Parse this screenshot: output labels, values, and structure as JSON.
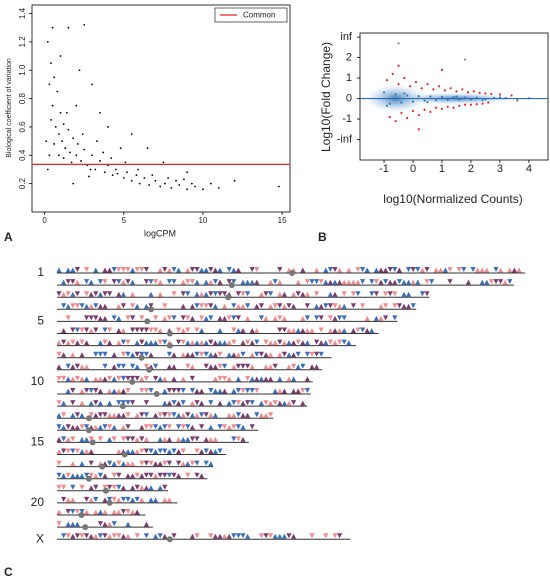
{
  "chart_data": [
    {
      "type": "scatter",
      "panel": "A",
      "xlabel": "logCPM",
      "ylabel": "Biological coefficient of variation",
      "xlim": [
        -0.8,
        15.5
      ],
      "ylim": [
        0,
        1.46
      ],
      "xticks": [
        0,
        5,
        10,
        15
      ],
      "yticks": [
        0.2,
        0.4,
        0.6,
        0.8,
        {
          "value": 1,
          "label": "1.0"
        },
        1.2,
        1.4
      ],
      "color": "#000000",
      "hline": {
        "name": "Common",
        "value": 0.336,
        "color": "#e8261f"
      },
      "x": [
        0.2,
        0.3,
        0.4,
        0.5,
        0.6,
        0.7,
        0.8,
        0.9,
        1.0,
        1.1,
        1.2,
        1.3,
        1.5,
        1.6,
        1.8,
        2.0,
        2.1,
        2.3,
        2.5,
        2.7,
        3.0,
        3.2,
        3.5,
        3.8,
        4.0,
        4.3,
        4.5,
        5.0,
        5.2,
        5.5,
        5.8,
        6.0,
        6.3,
        6.6,
        7.0,
        7.3,
        7.6,
        8.0,
        8.5,
        9.0,
        9.5,
        10.0,
        10.5,
        11.0,
        12.0,
        14.8,
        0.5,
        1.5,
        2.5,
        3.0,
        4.0,
        5.5,
        6.5,
        1.0,
        2.0,
        0.1,
        0.3,
        0.2,
        7.5,
        9.0,
        3.5,
        2.2,
        4.8,
        1.8,
        2.8,
        0.4,
        0.6,
        0.9,
        1.2,
        1.4,
        1.7,
        2.4,
        2.9,
        3.3,
        3.7,
        4.2,
        4.6,
        5.1,
        5.9,
        6.8,
        7.8,
        8.3,
        8.8,
        9.3
      ],
      "values": [
        1.2,
        0.9,
        1.05,
        0.75,
        0.95,
        0.6,
        0.85,
        0.55,
        0.7,
        0.5,
        0.62,
        0.45,
        0.58,
        0.42,
        0.52,
        0.4,
        0.48,
        0.36,
        0.44,
        0.33,
        0.4,
        0.3,
        0.36,
        0.28,
        0.33,
        0.26,
        0.3,
        0.24,
        0.28,
        0.22,
        0.26,
        0.2,
        0.24,
        0.19,
        0.22,
        0.18,
        0.2,
        0.17,
        0.19,
        0.16,
        0.18,
        0.16,
        0.2,
        0.17,
        0.22,
        0.18,
        1.3,
        1.3,
        1.32,
        0.9,
        0.6,
        0.55,
        0.45,
        1.1,
        0.75,
        0.5,
        0.4,
        0.3,
        0.35,
        0.28,
        0.7,
        1.0,
        0.45,
        0.2,
        0.25,
        0.65,
        0.48,
        0.4,
        0.38,
        0.7,
        0.35,
        0.55,
        0.3,
        0.5,
        0.42,
        0.38,
        0.27,
        0.35,
        0.3,
        0.26,
        0.24,
        0.22,
        0.23,
        0.2
      ]
    },
    {
      "type": "scatter",
      "panel": "B",
      "xlabel": "log10(Normalized Counts)",
      "ylabel": "Log10(Fold Change)",
      "xlim": [
        -1.83,
        4.66
      ],
      "ylim": [
        -3,
        3.2
      ],
      "xticks": [
        -1,
        0,
        1,
        2,
        3,
        4
      ],
      "yticks": [
        {
          "value": 3,
          "label": "inf"
        },
        2,
        1,
        0,
        -1,
        {
          "value": -2,
          "label": "-inf"
        }
      ],
      "hline": {
        "value": 0,
        "color": "#2a6fb5"
      },
      "series": [
        {
          "color": "#e8261f",
          "x": [
            -0.9,
            -0.7,
            -0.5,
            -0.3,
            -0.1,
            0.1,
            0.3,
            0.5,
            0.7,
            0.9,
            1.1,
            1.3,
            1.5,
            1.7,
            1.9,
            2.1,
            2.3,
            2.5,
            2.7,
            -0.8,
            -0.6,
            -0.4,
            -0.2,
            0.0,
            0.2,
            0.4,
            0.6,
            0.8,
            1.0,
            1.2,
            1.4,
            1.6,
            1.8,
            2.0,
            2.2,
            2.4,
            2.6,
            3.0,
            3.4,
            -0.5,
            0.2,
            1.0
          ],
          "values": [
            0.9,
            1.2,
            0.7,
            1.0,
            0.6,
            0.8,
            0.5,
            0.7,
            0.45,
            0.6,
            0.4,
            0.5,
            0.35,
            0.45,
            0.3,
            0.35,
            0.28,
            0.25,
            0.22,
            -0.9,
            -1.1,
            -0.7,
            -0.95,
            -0.6,
            -0.8,
            -0.55,
            -0.65,
            -0.45,
            -0.5,
            -0.4,
            -0.45,
            -0.35,
            -0.3,
            -0.3,
            -0.28,
            -0.25,
            -0.2,
            0.2,
            0.15,
            1.6,
            -1.5,
            1.4
          ]
        },
        {
          "color": "#3a78c2",
          "x": [
            -1.0,
            -0.8,
            -0.6,
            -0.4,
            -0.2,
            0.0,
            0.2,
            0.4,
            0.6,
            0.8,
            1.0,
            1.2,
            1.4,
            1.6,
            1.8,
            2.0,
            2.2,
            2.5,
            2.8,
            3.2,
            3.6,
            4.0,
            -0.9,
            -0.3,
            0.5,
            1.5,
            2.4,
            3.0
          ],
          "values": [
            0.3,
            -0.25,
            0.2,
            -0.2,
            0.15,
            -0.15,
            0.12,
            -0.1,
            0.1,
            -0.08,
            0.08,
            -0.06,
            0.06,
            -0.05,
            0.05,
            -0.04,
            0.04,
            -0.03,
            0.03,
            0.02,
            -0.02,
            0.01,
            -0.35,
            0.25,
            -0.18,
            0.1,
            -0.08,
            0.05
          ]
        },
        {
          "color": "#888888",
          "x": [
            -0.5,
            1.8,
            3.6
          ],
          "values": [
            2.7,
            1.9,
            -0.1
          ]
        }
      ]
    },
    {
      "type": "ideogram",
      "panel": "C",
      "xlim": [
        0,
        260
      ],
      "categories": [
        "1",
        null,
        null,
        null,
        "5",
        null,
        null,
        null,
        null,
        "10",
        null,
        null,
        null,
        null,
        "15",
        null,
        null,
        null,
        null,
        "20",
        null,
        null,
        "X"
      ],
      "values": [
        249,
        243,
        198,
        191,
        181,
        171,
        159,
        146,
        141,
        136,
        135,
        133,
        115,
        107,
        102,
        90,
        83,
        80,
        59,
        64,
        47,
        51,
        156
      ],
      "centromeres": [
        125,
        93,
        91,
        50,
        48,
        60,
        60,
        45,
        49,
        40,
        53,
        35,
        17,
        17,
        19,
        36,
        24,
        17,
        26,
        28,
        13,
        15,
        60
      ],
      "colors": [
        "#f08c8f",
        "#3a6fbf",
        "#7b3b6e"
      ]
    }
  ]
}
